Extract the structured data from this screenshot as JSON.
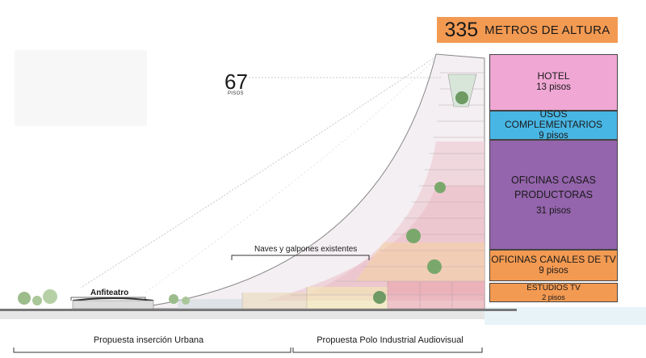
{
  "height": {
    "number": "335",
    "caption": "METROS DE ALTURA",
    "color": "#f39a52"
  },
  "floors": {
    "count": "67",
    "unit": "PISOS"
  },
  "uses": [
    {
      "title": "HOTEL",
      "subtitle": "13 pisos",
      "color": "#f0a7d4"
    },
    {
      "title": "USOS COMPLEMENTARIOS",
      "subtitle": "9 pisos",
      "color": "#48b6e4"
    },
    {
      "title": "OFICINAS CASAS PRODUCTORAS",
      "subtitle": "31 pisos",
      "color": "#9464ac"
    },
    {
      "title": "OFICINAS CANALES DE TV",
      "subtitle": "9 pisos",
      "color": "#f39a52"
    },
    {
      "title": "ESTUDIOS TV",
      "subtitle": "2 pisos",
      "color": "#f39a52"
    }
  ],
  "labels": {
    "anfiteatro": "Anfiteatro",
    "naves": "Naves y galpones existentes",
    "urbana": "Propuesta inserción Urbana",
    "polo": "Propuesta Polo Industrial Audiovisual"
  }
}
